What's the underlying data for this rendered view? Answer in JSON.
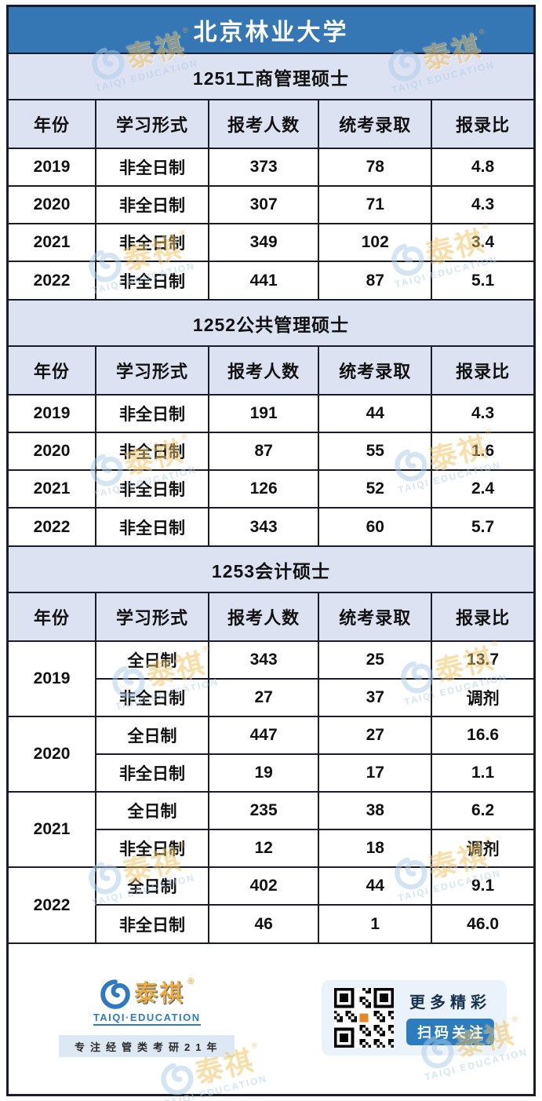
{
  "title": "北京林业大学",
  "columns": [
    "年份",
    "学习形式",
    "报考人数",
    "统考录取",
    "报录比"
  ],
  "sections": [
    {
      "name": "1251工商管理硕士",
      "rows": [
        [
          "2019",
          "非全日制",
          "373",
          "78",
          "4.8"
        ],
        [
          "2020",
          "非全日制",
          "307",
          "71",
          "4.3"
        ],
        [
          "2021",
          "非全日制",
          "349",
          "102",
          "3.4"
        ],
        [
          "2022",
          "非全日制",
          "441",
          "87",
          "5.1"
        ]
      ]
    },
    {
      "name": "1252公共管理硕士",
      "rows": [
        [
          "2019",
          "非全日制",
          "191",
          "44",
          "4.3"
        ],
        [
          "2020",
          "非全日制",
          "87",
          "55",
          "1.6"
        ],
        [
          "2021",
          "非全日制",
          "126",
          "52",
          "2.4"
        ],
        [
          "2022",
          "非全日制",
          "343",
          "60",
          "5.7"
        ]
      ]
    },
    {
      "name": "1253会计硕士",
      "year_groups": [
        {
          "year": "2019",
          "rows": [
            [
              "全日制",
              "343",
              "25",
              "13.7"
            ],
            [
              "非全日制",
              "27",
              "37",
              "调剂"
            ]
          ]
        },
        {
          "year": "2020",
          "rows": [
            [
              "全日制",
              "447",
              "27",
              "16.6"
            ],
            [
              "非全日制",
              "19",
              "17",
              "1.1"
            ]
          ]
        },
        {
          "year": "2021",
          "rows": [
            [
              "全日制",
              "235",
              "38",
              "6.2"
            ],
            [
              "非全日制",
              "12",
              "18",
              "调剂"
            ]
          ]
        },
        {
          "year": "2022",
          "rows": [
            [
              "全日制",
              "402",
              "44",
              "9.1"
            ],
            [
              "非全日制",
              "46",
              "1",
              "46.0"
            ]
          ]
        }
      ]
    }
  ],
  "footer": {
    "brand_cn": "泰祺",
    "brand_reg": "®",
    "brand_en": "TAIQI·EDUCATION",
    "tagline": "专注经管类考研21年",
    "qr_line1": "更多精彩",
    "qr_line2": "扫码关注"
  },
  "watermark": {
    "text_cn": "泰祺",
    "text_en": "TAIQI EDUCATION",
    "reg": "®"
  },
  "colors": {
    "header_blue": "#3577b5",
    "section_bg": "#dde2f2",
    "border": "#1b1b2e",
    "accent_blue": "#2d7dbe",
    "brand_gold": "#f0a93c"
  }
}
